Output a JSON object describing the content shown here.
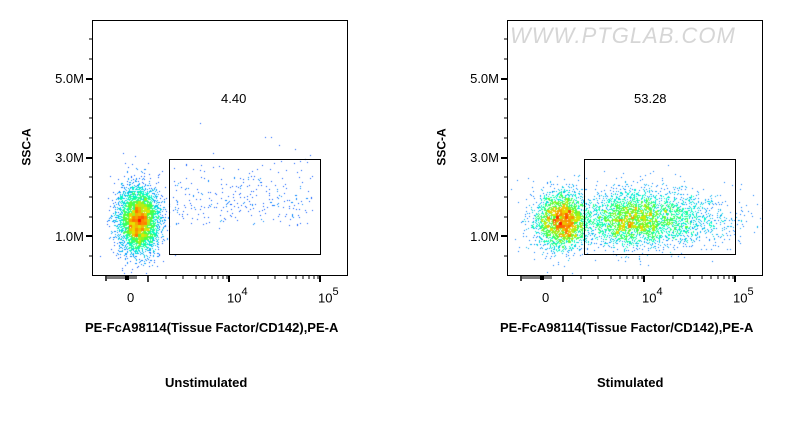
{
  "watermark": "WWW.PTGLAB.COM",
  "chart_data": [
    {
      "type": "scatter",
      "title": "Unstimulated",
      "xlabel": "PE-FcA98114(Tissue Factor/CD142),PE-A",
      "ylabel": "SSC-A",
      "x_scale": "biexponential",
      "x_ticks": [
        "0",
        "10^4",
        "10^5"
      ],
      "y_ticks": [
        "1.0M",
        "3.0M",
        "5.0M"
      ],
      "ylim": [
        0,
        6.5
      ],
      "gate": {
        "x_from": "~10^3",
        "x_to": "~10^5",
        "y_from": 0.55,
        "y_to": 2.95,
        "percent": "4.40"
      },
      "population": {
        "center_x": "~0",
        "center_y": 1.4,
        "positive_fraction": 0.044
      }
    },
    {
      "type": "scatter",
      "title": "Stimulated",
      "xlabel": "PE-FcA98114(Tissue Factor/CD142),PE-A",
      "ylabel": "SSC-A",
      "x_scale": "biexponential",
      "x_ticks": [
        "0",
        "10^4",
        "10^5"
      ],
      "y_ticks": [
        "1.0M",
        "3.0M",
        "5.0M"
      ],
      "ylim": [
        0,
        6.5
      ],
      "gate": {
        "x_from": "~10^3",
        "x_to": "~10^5",
        "y_from": 0.55,
        "y_to": 2.95,
        "percent": "53.28"
      },
      "population": {
        "center_x": "~10^3",
        "center_y": 1.5,
        "positive_fraction": 0.5328
      }
    }
  ],
  "plots": [
    {
      "caption": "Unstimulated",
      "gate_percent": "4.40",
      "xlabel": "PE-FcA98114(Tissue Factor/CD142),PE-A",
      "ylabel": "SSC-A",
      "yticks": [
        "5.0M",
        "3.0M",
        "1.0M"
      ],
      "xticks": {
        "zero": "0",
        "e4_base": "10",
        "e4_exp": "4",
        "e5_base": "10",
        "e5_exp": "5"
      }
    },
    {
      "caption": "Stimulated",
      "gate_percent": "53.28",
      "xlabel": "PE-FcA98114(Tissue Factor/CD142),PE-A",
      "ylabel": "SSC-A",
      "yticks": [
        "5.0M",
        "3.0M",
        "1.0M"
      ],
      "xticks": {
        "zero": "0",
        "e4_base": "10",
        "e4_exp": "4",
        "e5_base": "10",
        "e5_exp": "5"
      }
    }
  ],
  "colors": {
    "frame": "#000000",
    "density_low": "#0000ff",
    "density_mid": "#00ff80",
    "density_high": "#ff2000"
  }
}
